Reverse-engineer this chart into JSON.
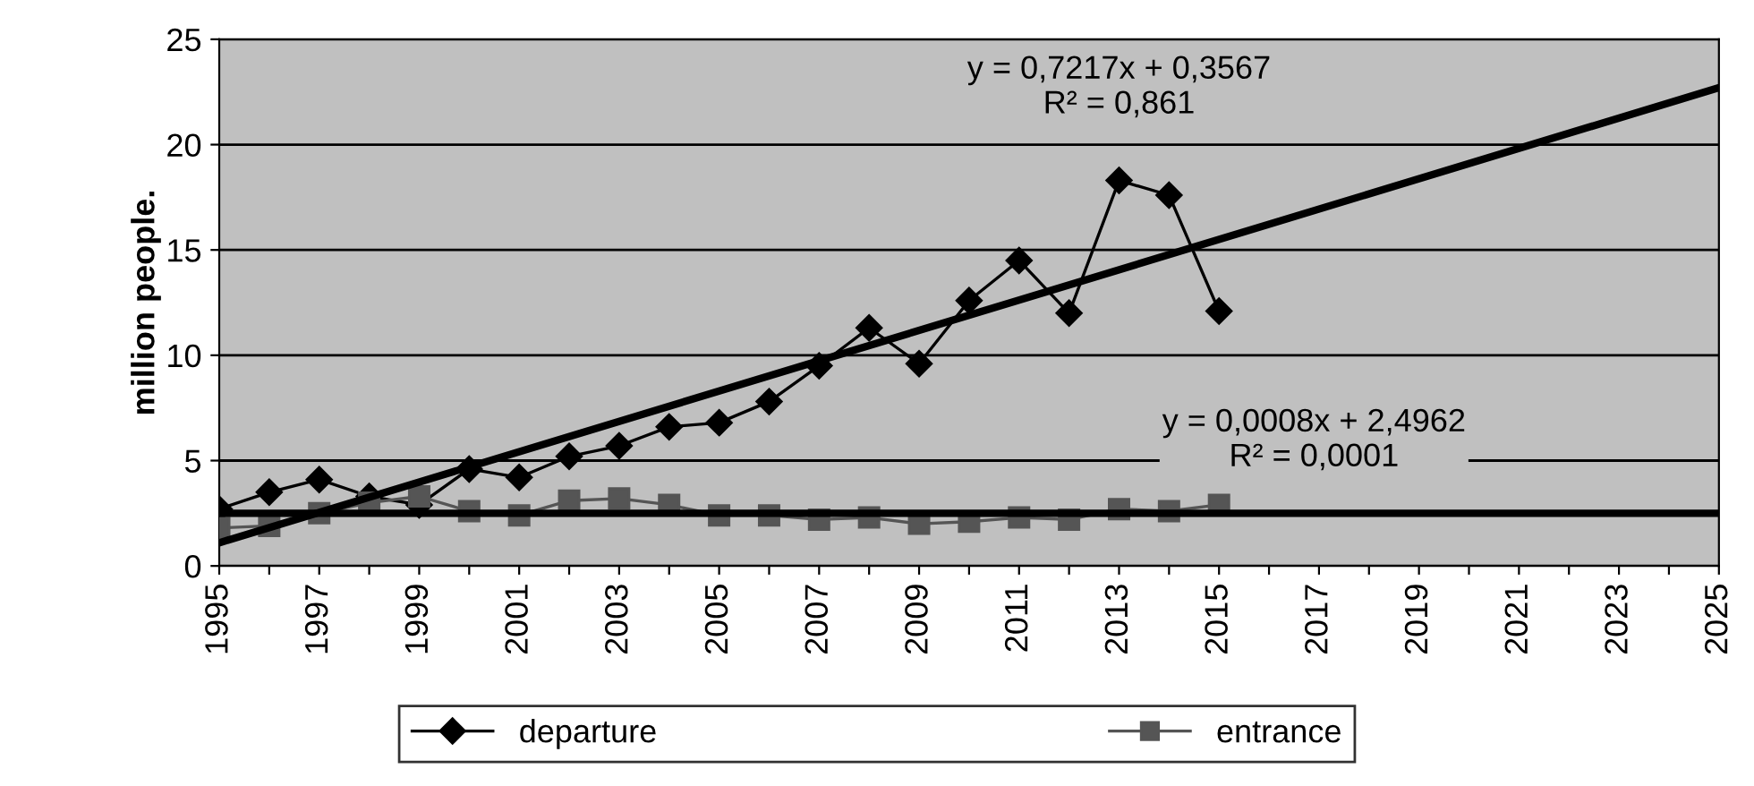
{
  "chart_data": {
    "type": "line",
    "ylabel": "million people.",
    "xlim": [
      1995,
      2025
    ],
    "xticks": [
      1995,
      {
        "value": 1996,
        "label": null
      },
      1997,
      {
        "value": 1998,
        "label": null
      },
      1999,
      {
        "value": 2000,
        "label": null
      },
      2001,
      {
        "value": 2002,
        "label": null
      },
      2003,
      {
        "value": 2004,
        "label": null
      },
      2005,
      {
        "value": 2006,
        "label": null
      },
      2007,
      {
        "value": 2008,
        "label": null
      },
      2009,
      {
        "value": 2010,
        "label": null
      },
      2011,
      {
        "value": 2012,
        "label": null
      },
      2013,
      {
        "value": 2014,
        "label": null
      },
      2015,
      {
        "value": 2016,
        "label": null
      },
      2017,
      {
        "value": 2018,
        "label": null
      },
      2019,
      {
        "value": 2020,
        "label": null
      },
      2021,
      {
        "value": 2022,
        "label": null
      },
      2023,
      {
        "value": 2024,
        "label": null
      },
      2025
    ],
    "ylim": [
      0,
      25
    ],
    "yticks": [
      0,
      5,
      10,
      15,
      20,
      25
    ],
    "grid": "y",
    "legend": "bottom",
    "series": [
      {
        "name": "departure",
        "color": "#000000",
        "marker": "diamond",
        "x": [
          1995,
          1996,
          1997,
          1998,
          1999,
          2000,
          2001,
          2002,
          2003,
          2004,
          2005,
          2006,
          2007,
          2008,
          2009,
          2010,
          2011,
          2012,
          2013,
          2014,
          2015
        ],
        "values": [
          2.7,
          3.5,
          4.1,
          3.3,
          2.9,
          4.6,
          4.2,
          5.2,
          5.7,
          6.6,
          6.8,
          7.8,
          9.5,
          11.3,
          9.6,
          12.6,
          14.5,
          12.0,
          18.3,
          17.6,
          12.1
        ]
      },
      {
        "name": "entrance",
        "color": "#555555",
        "marker": "square",
        "x": [
          1995,
          1996,
          1997,
          1998,
          1999,
          2000,
          2001,
          2002,
          2003,
          2004,
          2005,
          2006,
          2007,
          2008,
          2009,
          2010,
          2011,
          2012,
          2013,
          2014,
          2015
        ],
        "values": [
          1.8,
          1.9,
          2.5,
          3.0,
          3.3,
          2.6,
          2.4,
          3.1,
          3.2,
          2.9,
          2.4,
          2.4,
          2.2,
          2.3,
          2.0,
          2.1,
          2.3,
          2.2,
          2.7,
          2.6,
          2.9
        ]
      },
      {
        "color": "#000000",
        "marker": "none",
        "x": [
          1995,
          2025
        ],
        "values": [
          1.1,
          22.7
        ]
      },
      {
        "color": "#000000",
        "marker": "none",
        "x": [
          1995,
          2025
        ],
        "values": [
          2.5,
          2.5
        ]
      }
    ],
    "annotations": [
      "y = 0,7217x + 0,3567\nR² = 0,861",
      "y = 0,0008x + 2,4962\nR² = 0,0001"
    ]
  }
}
